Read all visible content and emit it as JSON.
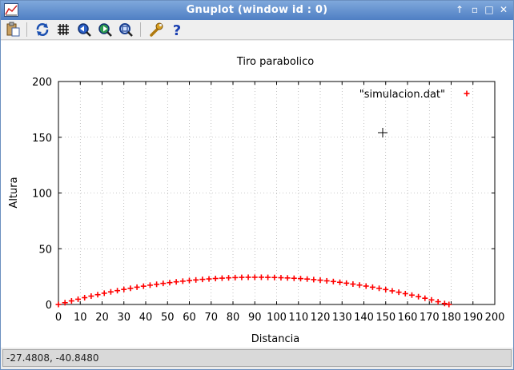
{
  "window": {
    "title": "Gnuplot (window id : 0)",
    "controls": {
      "up": "↑",
      "minimize": "▫",
      "maximize": "□",
      "close": "✕"
    }
  },
  "toolbar": {
    "items": [
      {
        "name": "copy-to-clipboard",
        "icon": "clipboard-icon"
      },
      {
        "name": "replot",
        "icon": "refresh-icon"
      },
      {
        "name": "toggle-grid",
        "icon": "grid-icon"
      },
      {
        "name": "previous-zoom",
        "icon": "zoom-back-icon"
      },
      {
        "name": "next-zoom",
        "icon": "zoom-forward-icon"
      },
      {
        "name": "autoscale",
        "icon": "zoom-fit-icon"
      },
      {
        "name": "preferences",
        "icon": "wrench-icon"
      },
      {
        "name": "help",
        "icon": "help-icon"
      }
    ]
  },
  "status": {
    "coordinates": "-27.4808, -40.8480"
  },
  "colors": {
    "series": "#ff0000",
    "titlebar": "#5a88c9",
    "grid": "#999999"
  },
  "chart_data": {
    "type": "scatter",
    "title": "Tiro parabolico",
    "xlabel": "Distancia",
    "ylabel": "Altura",
    "xlim": [
      0,
      200
    ],
    "ylim": [
      0,
      200
    ],
    "xticks": [
      0,
      10,
      20,
      30,
      40,
      50,
      60,
      70,
      80,
      90,
      100,
      110,
      120,
      130,
      140,
      150,
      160,
      170,
      180,
      190,
      200
    ],
    "yticks": [
      0,
      50,
      100,
      150,
      200
    ],
    "grid": true,
    "legend_position": "top-right",
    "series": [
      {
        "name": "\"simulacion.dat\"",
        "marker": "+",
        "color": "#ff0000",
        "x": [
          0,
          3,
          6,
          9,
          12,
          15,
          18,
          21,
          24,
          27,
          30,
          33,
          36,
          39,
          42,
          45,
          48,
          51,
          54,
          57,
          60,
          63,
          66,
          69,
          72,
          75,
          78,
          81,
          84,
          87,
          90,
          93,
          96,
          99,
          102,
          105,
          108,
          111,
          114,
          117,
          120,
          123,
          126,
          129,
          132,
          135,
          138,
          141,
          144,
          147,
          150,
          153,
          156,
          159,
          162,
          165,
          168,
          171,
          174,
          177,
          179
        ],
        "y": [
          0,
          1.6,
          3.2,
          4.7,
          6.1,
          7.5,
          8.8,
          10.1,
          11.3,
          12.4,
          13.5,
          14.5,
          15.5,
          16.4,
          17.3,
          18.1,
          18.9,
          19.6,
          20.3,
          20.9,
          21.5,
          22.0,
          22.5,
          22.9,
          23.3,
          23.6,
          23.9,
          24.1,
          24.3,
          24.4,
          24.4,
          24.4,
          24.3,
          24.2,
          24.0,
          23.8,
          23.5,
          23.2,
          22.8,
          22.3,
          21.8,
          21.2,
          20.6,
          19.9,
          19.1,
          18.3,
          17.4,
          16.5,
          15.5,
          14.5,
          13.4,
          12.2,
          11.0,
          9.7,
          8.4,
          7.0,
          5.6,
          4.1,
          2.5,
          0.9,
          0
        ]
      }
    ]
  }
}
